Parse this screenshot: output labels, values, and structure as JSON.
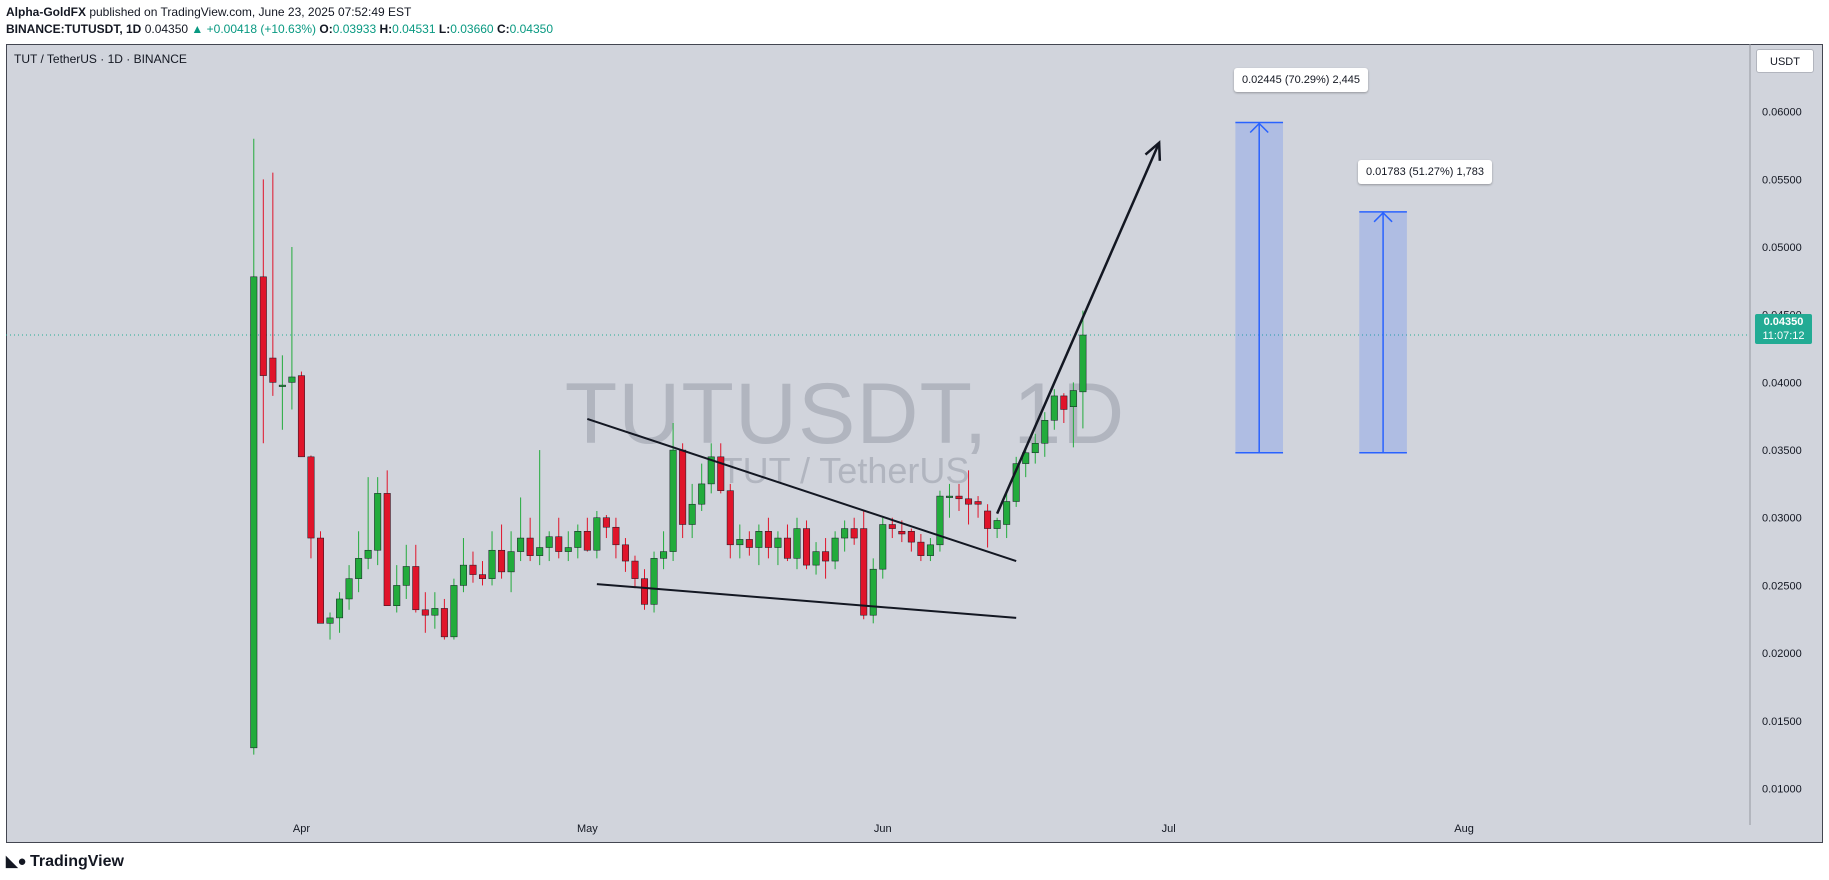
{
  "header": {
    "author": "Alpha-GoldFX",
    "published": " published on TradingView.com, June 23, 2025 07:52:49 EST",
    "symbol": "BINANCE:TUTUSDT, 1D",
    "last": "0.04350",
    "change": "▲ +0.00418 (+10.63%)",
    "o_label": "O:",
    "o_value": "0.03933",
    "h_label": "H:",
    "h_value": "0.04531",
    "l_label": "L:",
    "l_value": "0.03660",
    "c_label": "C:",
    "c_value": "0.04350"
  },
  "pane": {
    "title": "TUT / TetherUS · 1D · BINANCE",
    "watermark_symbol": "TUTUSDT, 1D",
    "watermark_name": "TUT / TetherUS",
    "currency": "USDT",
    "price_tag": "0.04350",
    "countdown": "11:07:12"
  },
  "measures": [
    {
      "label": "0.02445 (70.29%) 2,445"
    },
    {
      "label": "0.01783 (51.27%) 1,783"
    }
  ],
  "footer": {
    "brand": "TradingView",
    "logo_icon": "tradingview-logo-icon"
  },
  "colors": {
    "up": "#22ab3c",
    "down": "#e0142a",
    "background": "#d1d4dc",
    "accent": "#2962ff",
    "price_line": "#22ab94"
  },
  "chart_data": {
    "type": "candlestick",
    "title": "TUT / TetherUS · 1D · BINANCE",
    "y_ticks": [
      "0.06000",
      "0.05500",
      "0.05000",
      "0.04500",
      "0.04000",
      "0.03500",
      "0.03000",
      "0.02500",
      "0.02000",
      "0.01500",
      "0.01000"
    ],
    "ylim": [
      0.0073,
      0.065
    ],
    "x_ticks": [
      {
        "label": "Apr",
        "date": "2025-04-01"
      },
      {
        "label": "May",
        "date": "2025-05-01"
      },
      {
        "label": "Jun",
        "date": "2025-06-01"
      },
      {
        "label": "Jul",
        "date": "2025-07-01"
      },
      {
        "label": "Aug",
        "date": "2025-08-01"
      }
    ],
    "xlim": [
      "2025-03-01",
      "2025-08-31"
    ],
    "current_price": 0.0435,
    "candles": [
      {
        "date": "2025-03-27",
        "o": 0.013,
        "h": 0.058,
        "l": 0.0125,
        "c": 0.0478
      },
      {
        "date": "2025-03-28",
        "o": 0.0478,
        "h": 0.055,
        "l": 0.0355,
        "c": 0.0405
      },
      {
        "date": "2025-03-29",
        "o": 0.0418,
        "h": 0.0555,
        "l": 0.039,
        "c": 0.04
      },
      {
        "date": "2025-03-30",
        "o": 0.0398,
        "h": 0.042,
        "l": 0.0365,
        "c": 0.0398
      },
      {
        "date": "2025-03-31",
        "o": 0.04,
        "h": 0.05,
        "l": 0.038,
        "c": 0.0404
      },
      {
        "date": "2025-04-01",
        "o": 0.0405,
        "h": 0.0408,
        "l": 0.0345,
        "c": 0.0345
      },
      {
        "date": "2025-04-02",
        "o": 0.0345,
        "h": 0.0346,
        "l": 0.027,
        "c": 0.0285
      },
      {
        "date": "2025-04-03",
        "o": 0.0285,
        "h": 0.029,
        "l": 0.0222,
        "c": 0.0222
      },
      {
        "date": "2025-04-04",
        "o": 0.0222,
        "h": 0.023,
        "l": 0.021,
        "c": 0.0226
      },
      {
        "date": "2025-04-05",
        "o": 0.0226,
        "h": 0.0245,
        "l": 0.0215,
        "c": 0.024
      },
      {
        "date": "2025-04-06",
        "o": 0.024,
        "h": 0.0265,
        "l": 0.0232,
        "c": 0.0255
      },
      {
        "date": "2025-04-07",
        "o": 0.0255,
        "h": 0.029,
        "l": 0.0245,
        "c": 0.027
      },
      {
        "date": "2025-04-08",
        "o": 0.027,
        "h": 0.033,
        "l": 0.0262,
        "c": 0.0276
      },
      {
        "date": "2025-04-09",
        "o": 0.0276,
        "h": 0.033,
        "l": 0.0265,
        "c": 0.0318
      },
      {
        "date": "2025-04-10",
        "o": 0.0318,
        "h": 0.0335,
        "l": 0.0235,
        "c": 0.0235
      },
      {
        "date": "2025-04-11",
        "o": 0.0235,
        "h": 0.0265,
        "l": 0.023,
        "c": 0.025
      },
      {
        "date": "2025-04-12",
        "o": 0.025,
        "h": 0.028,
        "l": 0.024,
        "c": 0.0264
      },
      {
        "date": "2025-04-13",
        "o": 0.0264,
        "h": 0.028,
        "l": 0.023,
        "c": 0.0232
      },
      {
        "date": "2025-04-14",
        "o": 0.0232,
        "h": 0.0245,
        "l": 0.0215,
        "c": 0.0228
      },
      {
        "date": "2025-04-15",
        "o": 0.0228,
        "h": 0.0245,
        "l": 0.0218,
        "c": 0.0233
      },
      {
        "date": "2025-04-16",
        "o": 0.0233,
        "h": 0.024,
        "l": 0.021,
        "c": 0.0212
      },
      {
        "date": "2025-04-17",
        "o": 0.0212,
        "h": 0.0255,
        "l": 0.021,
        "c": 0.025
      },
      {
        "date": "2025-04-18",
        "o": 0.025,
        "h": 0.0285,
        "l": 0.0245,
        "c": 0.0265
      },
      {
        "date": "2025-04-19",
        "o": 0.0265,
        "h": 0.0275,
        "l": 0.0252,
        "c": 0.0258
      },
      {
        "date": "2025-04-20",
        "o": 0.0258,
        "h": 0.0268,
        "l": 0.025,
        "c": 0.0255
      },
      {
        "date": "2025-04-21",
        "o": 0.0255,
        "h": 0.029,
        "l": 0.025,
        "c": 0.0276
      },
      {
        "date": "2025-04-22",
        "o": 0.0276,
        "h": 0.0295,
        "l": 0.0255,
        "c": 0.026
      },
      {
        "date": "2025-04-23",
        "o": 0.026,
        "h": 0.029,
        "l": 0.0245,
        "c": 0.0275
      },
      {
        "date": "2025-04-24",
        "o": 0.0275,
        "h": 0.0315,
        "l": 0.0268,
        "c": 0.0285
      },
      {
        "date": "2025-04-25",
        "o": 0.0285,
        "h": 0.03,
        "l": 0.0268,
        "c": 0.0272
      },
      {
        "date": "2025-04-26",
        "o": 0.0272,
        "h": 0.035,
        "l": 0.0265,
        "c": 0.0278
      },
      {
        "date": "2025-04-27",
        "o": 0.0278,
        "h": 0.029,
        "l": 0.0268,
        "c": 0.0286
      },
      {
        "date": "2025-04-28",
        "o": 0.0286,
        "h": 0.03,
        "l": 0.027,
        "c": 0.0275
      },
      {
        "date": "2025-04-29",
        "o": 0.0275,
        "h": 0.029,
        "l": 0.0268,
        "c": 0.0278
      },
      {
        "date": "2025-04-30",
        "o": 0.0278,
        "h": 0.0295,
        "l": 0.027,
        "c": 0.029
      },
      {
        "date": "2025-05-01",
        "o": 0.029,
        "h": 0.03,
        "l": 0.0275,
        "c": 0.0276
      },
      {
        "date": "2025-05-02",
        "o": 0.0276,
        "h": 0.0305,
        "l": 0.027,
        "c": 0.03
      },
      {
        "date": "2025-05-03",
        "o": 0.03,
        "h": 0.0302,
        "l": 0.0285,
        "c": 0.0293
      },
      {
        "date": "2025-05-04",
        "o": 0.0293,
        "h": 0.03,
        "l": 0.027,
        "c": 0.028
      },
      {
        "date": "2025-05-05",
        "o": 0.028,
        "h": 0.0285,
        "l": 0.026,
        "c": 0.0268
      },
      {
        "date": "2025-05-06",
        "o": 0.0268,
        "h": 0.0272,
        "l": 0.0248,
        "c": 0.0255
      },
      {
        "date": "2025-05-07",
        "o": 0.0255,
        "h": 0.0262,
        "l": 0.0232,
        "c": 0.0236
      },
      {
        "date": "2025-05-08",
        "o": 0.0236,
        "h": 0.0275,
        "l": 0.023,
        "c": 0.027
      },
      {
        "date": "2025-05-09",
        "o": 0.027,
        "h": 0.029,
        "l": 0.0262,
        "c": 0.0275
      },
      {
        "date": "2025-05-10",
        "o": 0.0275,
        "h": 0.037,
        "l": 0.0268,
        "c": 0.035
      },
      {
        "date": "2025-05-11",
        "o": 0.035,
        "h": 0.0355,
        "l": 0.0285,
        "c": 0.0295
      },
      {
        "date": "2025-05-12",
        "o": 0.0295,
        "h": 0.0325,
        "l": 0.0285,
        "c": 0.031
      },
      {
        "date": "2025-05-13",
        "o": 0.031,
        "h": 0.034,
        "l": 0.0305,
        "c": 0.0325
      },
      {
        "date": "2025-05-14",
        "o": 0.0325,
        "h": 0.0355,
        "l": 0.0318,
        "c": 0.0345
      },
      {
        "date": "2025-05-15",
        "o": 0.0345,
        "h": 0.0355,
        "l": 0.0318,
        "c": 0.032
      },
      {
        "date": "2025-05-16",
        "o": 0.032,
        "h": 0.0325,
        "l": 0.027,
        "c": 0.028
      },
      {
        "date": "2025-05-17",
        "o": 0.028,
        "h": 0.0295,
        "l": 0.027,
        "c": 0.0284
      },
      {
        "date": "2025-05-18",
        "o": 0.0284,
        "h": 0.029,
        "l": 0.0272,
        "c": 0.0278
      },
      {
        "date": "2025-05-19",
        "o": 0.0278,
        "h": 0.0295,
        "l": 0.0265,
        "c": 0.029
      },
      {
        "date": "2025-05-20",
        "o": 0.029,
        "h": 0.03,
        "l": 0.027,
        "c": 0.0278
      },
      {
        "date": "2025-05-21",
        "o": 0.0278,
        "h": 0.029,
        "l": 0.0265,
        "c": 0.0285
      },
      {
        "date": "2025-05-22",
        "o": 0.0285,
        "h": 0.0295,
        "l": 0.0268,
        "c": 0.027
      },
      {
        "date": "2025-05-23",
        "o": 0.027,
        "h": 0.03,
        "l": 0.0262,
        "c": 0.0292
      },
      {
        "date": "2025-05-24",
        "o": 0.0292,
        "h": 0.0298,
        "l": 0.0262,
        "c": 0.0265
      },
      {
        "date": "2025-05-25",
        "o": 0.0265,
        "h": 0.0282,
        "l": 0.0258,
        "c": 0.0275
      },
      {
        "date": "2025-05-26",
        "o": 0.0275,
        "h": 0.0285,
        "l": 0.0255,
        "c": 0.0268
      },
      {
        "date": "2025-05-27",
        "o": 0.0268,
        "h": 0.029,
        "l": 0.0262,
        "c": 0.0285
      },
      {
        "date": "2025-05-28",
        "o": 0.0285,
        "h": 0.0298,
        "l": 0.0275,
        "c": 0.0292
      },
      {
        "date": "2025-05-29",
        "o": 0.0292,
        "h": 0.03,
        "l": 0.028,
        "c": 0.0285
      },
      {
        "date": "2025-05-30",
        "o": 0.0292,
        "h": 0.0305,
        "l": 0.0225,
        "c": 0.0228
      },
      {
        "date": "2025-05-31",
        "o": 0.0228,
        "h": 0.027,
        "l": 0.0222,
        "c": 0.0262
      },
      {
        "date": "2025-06-01",
        "o": 0.0262,
        "h": 0.03,
        "l": 0.0255,
        "c": 0.0295
      },
      {
        "date": "2025-06-02",
        "o": 0.0295,
        "h": 0.03,
        "l": 0.0285,
        "c": 0.0292
      },
      {
        "date": "2025-06-03",
        "o": 0.029,
        "h": 0.0298,
        "l": 0.0282,
        "c": 0.0288
      },
      {
        "date": "2025-06-04",
        "o": 0.029,
        "h": 0.0292,
        "l": 0.0275,
        "c": 0.0282
      },
      {
        "date": "2025-06-05",
        "o": 0.0282,
        "h": 0.0288,
        "l": 0.0268,
        "c": 0.0272
      },
      {
        "date": "2025-06-06",
        "o": 0.0272,
        "h": 0.0285,
        "l": 0.0268,
        "c": 0.028
      },
      {
        "date": "2025-06-07",
        "o": 0.028,
        "h": 0.032,
        "l": 0.0275,
        "c": 0.0316
      },
      {
        "date": "2025-06-08",
        "o": 0.0316,
        "h": 0.0325,
        "l": 0.03,
        "c": 0.0316
      },
      {
        "date": "2025-06-09",
        "o": 0.0316,
        "h": 0.0325,
        "l": 0.0305,
        "c": 0.0314
      },
      {
        "date": "2025-06-10",
        "o": 0.0314,
        "h": 0.0335,
        "l": 0.0295,
        "c": 0.031
      },
      {
        "date": "2025-06-11",
        "o": 0.0312,
        "h": 0.0316,
        "l": 0.03,
        "c": 0.031
      },
      {
        "date": "2025-06-12",
        "o": 0.0305,
        "h": 0.031,
        "l": 0.0278,
        "c": 0.0292
      },
      {
        "date": "2025-06-13",
        "o": 0.0292,
        "h": 0.03,
        "l": 0.0285,
        "c": 0.0298
      },
      {
        "date": "2025-06-14",
        "o": 0.0295,
        "h": 0.032,
        "l": 0.0285,
        "c": 0.0312
      },
      {
        "date": "2025-06-15",
        "o": 0.0312,
        "h": 0.0345,
        "l": 0.0308,
        "c": 0.034
      },
      {
        "date": "2025-06-16",
        "o": 0.034,
        "h": 0.0352,
        "l": 0.033,
        "c": 0.0348
      },
      {
        "date": "2025-06-17",
        "o": 0.0348,
        "h": 0.0362,
        "l": 0.034,
        "c": 0.0355
      },
      {
        "date": "2025-06-18",
        "o": 0.0355,
        "h": 0.0378,
        "l": 0.0345,
        "c": 0.0372
      },
      {
        "date": "2025-06-19",
        "o": 0.0372,
        "h": 0.0395,
        "l": 0.0365,
        "c": 0.039
      },
      {
        "date": "2025-06-20",
        "o": 0.039,
        "h": 0.0392,
        "l": 0.037,
        "c": 0.038
      },
      {
        "date": "2025-06-21",
        "o": 0.0382,
        "h": 0.04,
        "l": 0.0352,
        "c": 0.0394
      },
      {
        "date": "2025-06-22",
        "o": 0.0393,
        "h": 0.0453,
        "l": 0.0366,
        "c": 0.0435
      }
    ],
    "annotations": {
      "upper_trendline": [
        {
          "date": "2025-05-01",
          "price": 0.0373
        },
        {
          "date": "2025-06-15",
          "price": 0.0268
        }
      ],
      "lower_trendline": [
        {
          "date": "2025-05-02",
          "price": 0.0251
        },
        {
          "date": "2025-06-15",
          "price": 0.0226
        }
      ],
      "projection_arrow": [
        {
          "date": "2025-06-13",
          "price": 0.0303
        },
        {
          "date": "2025-06-30",
          "price": 0.0577
        }
      ],
      "measures": [
        {
          "from_date": "2025-07-08",
          "to_date": "2025-07-13",
          "start_price": 0.0348,
          "end_price": 0.0592,
          "label": "0.02445 (70.29%) 2,445"
        },
        {
          "from_date": "2025-07-21",
          "to_date": "2025-07-26",
          "start_price": 0.0348,
          "end_price": 0.0526,
          "label": "0.01783 (51.27%) 1,783"
        }
      ]
    }
  }
}
